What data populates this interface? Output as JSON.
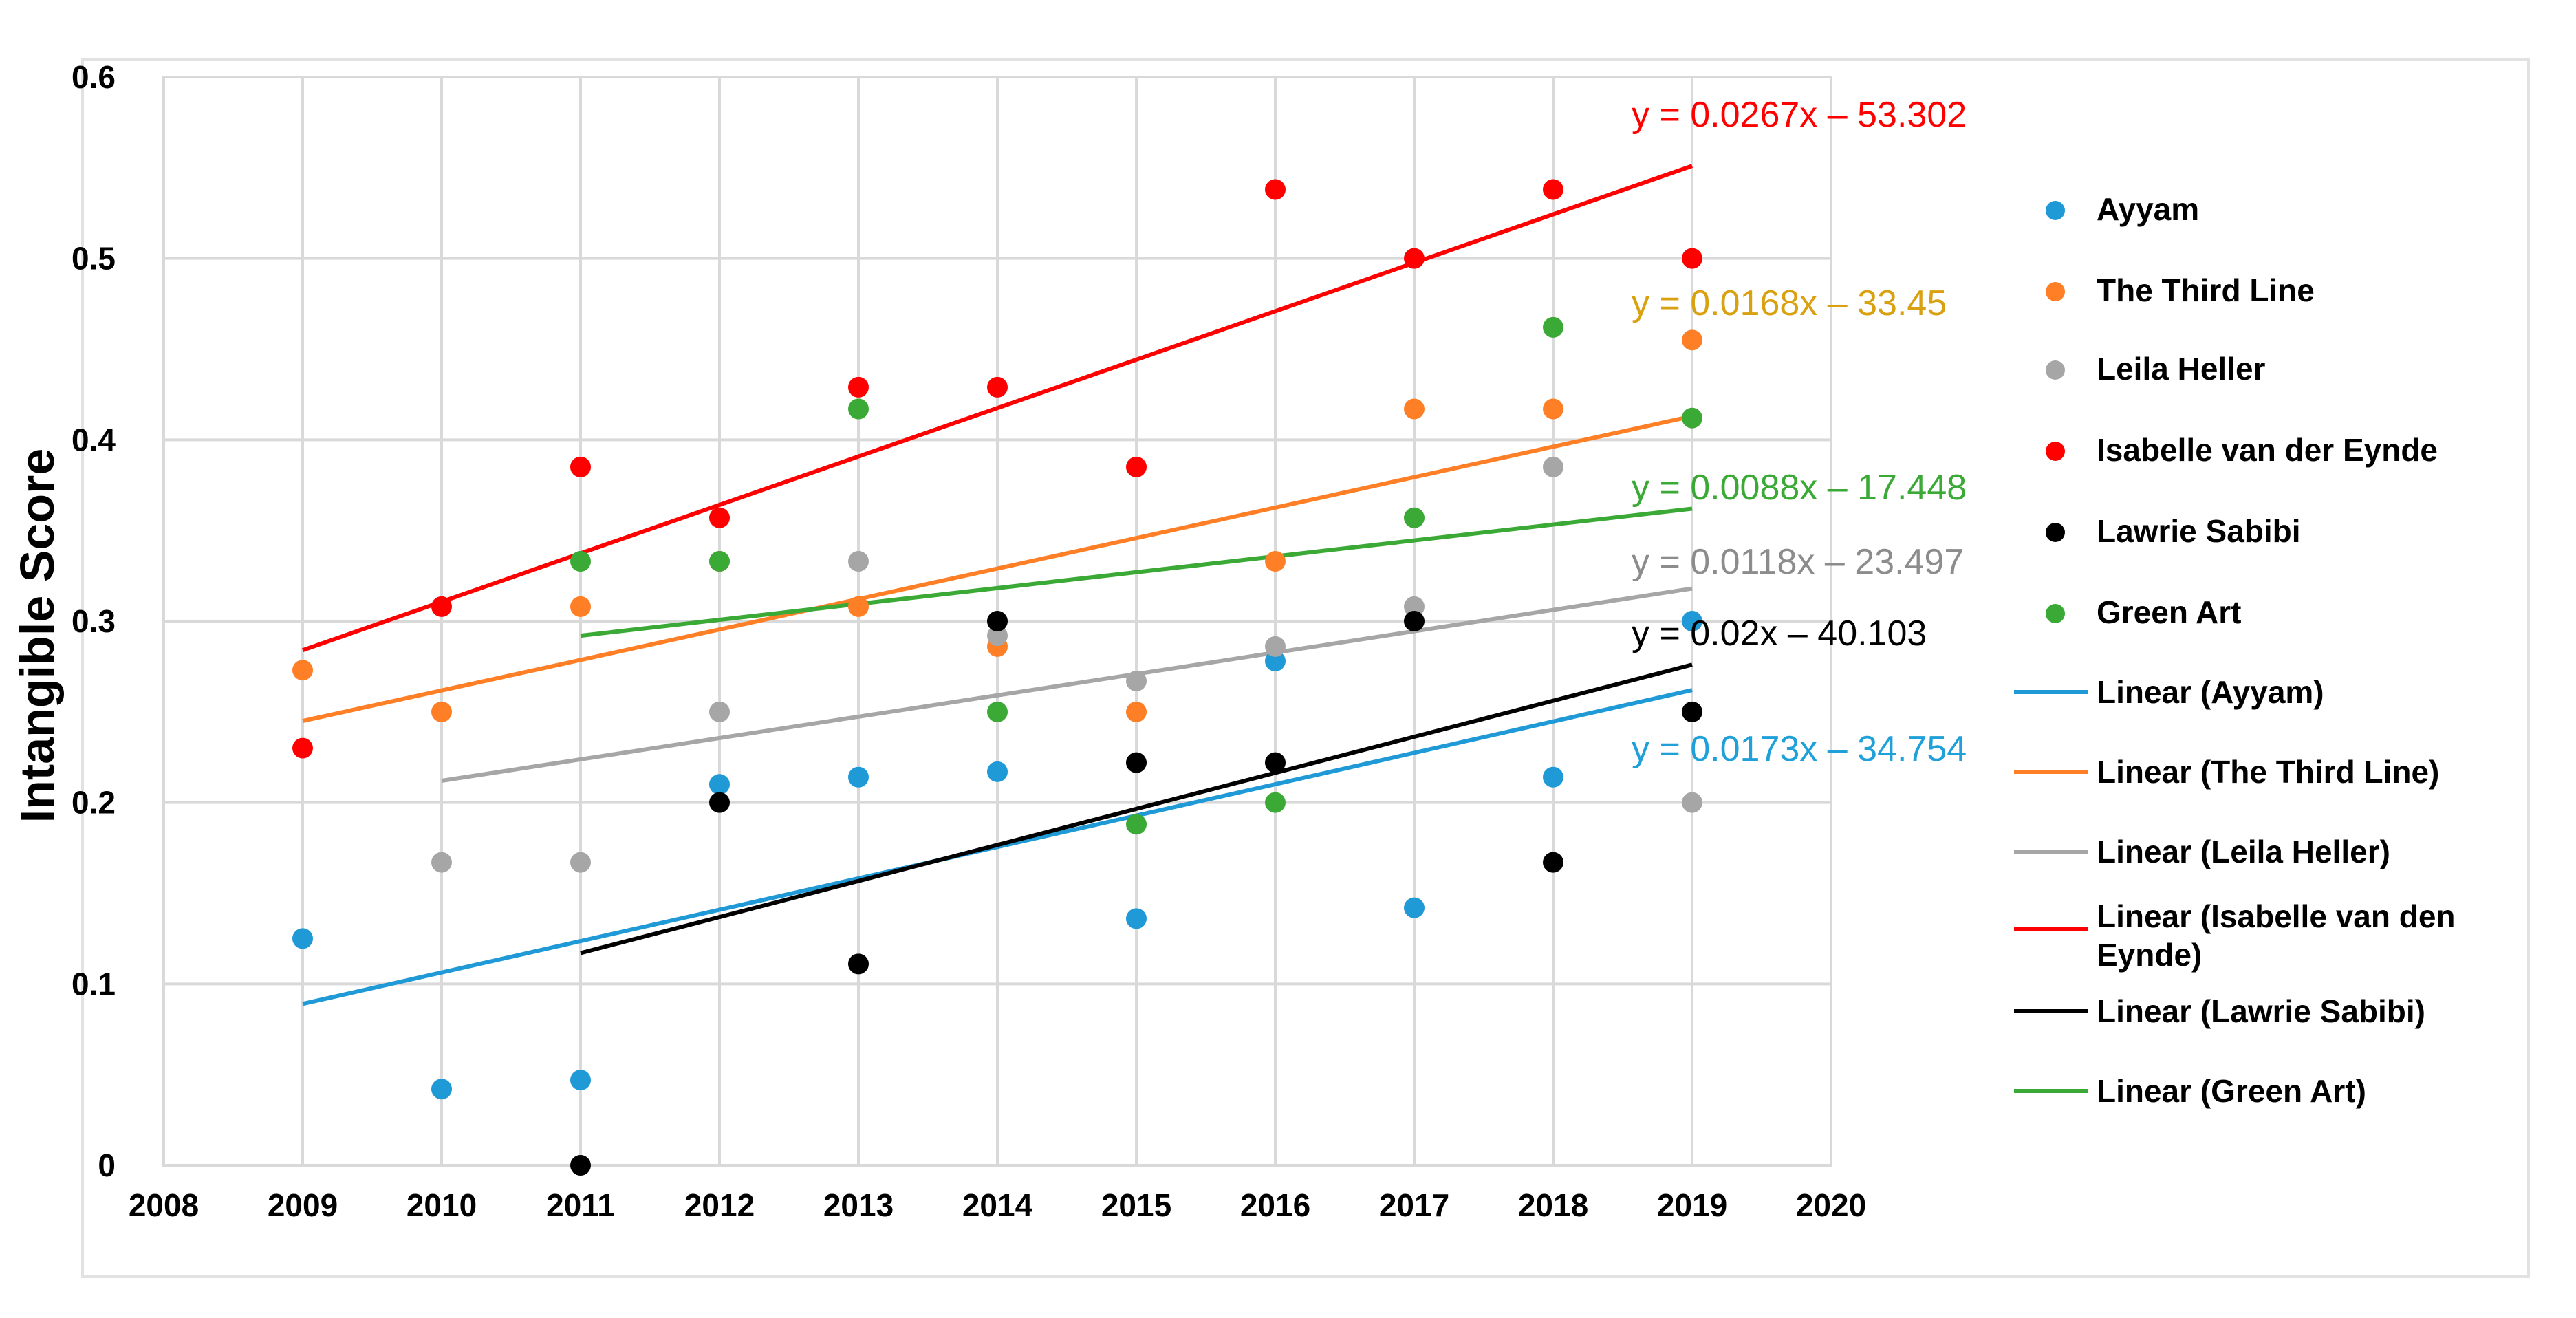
{
  "chart_data": {
    "type": "scatter",
    "ylabel": "Intangible Score",
    "xlabel": "",
    "xlim": [
      2008,
      2020
    ],
    "ylim": [
      0,
      0.6
    ],
    "xticks": [
      "2008",
      "2009",
      "2010",
      "2011",
      "2012",
      "2013",
      "2014",
      "2015",
      "2016",
      "2017",
      "2018",
      "2019",
      "2020"
    ],
    "yticks": [
      "0",
      "0.1",
      "0.2",
      "0.3",
      "0.4",
      "0.5",
      "0.6"
    ],
    "grid": true,
    "legend_position": "right",
    "series": [
      {
        "name": "Ayyam",
        "color": "#1f9ad6",
        "points": [
          [
            2009,
            0.125
          ],
          [
            2010,
            0.042
          ],
          [
            2011,
            0.047
          ],
          [
            2012,
            0.21
          ],
          [
            2013,
            0.214
          ],
          [
            2014,
            0.217
          ],
          [
            2015,
            0.136
          ],
          [
            2016,
            0.278
          ],
          [
            2017,
            0.142
          ],
          [
            2018,
            0.214
          ],
          [
            2019,
            0.3
          ]
        ],
        "trend": {
          "label": "Linear (Ayyam)",
          "equation": "y = 0.0173x – 34.754",
          "x": [
            2009,
            2019
          ],
          "y": [
            0.089,
            0.262
          ]
        }
      },
      {
        "name": "The Third Line",
        "color": "#ff7f27",
        "points": [
          [
            2009,
            0.273
          ],
          [
            2010,
            0.25
          ],
          [
            2011,
            0.308
          ],
          [
            2012,
            0.333
          ],
          [
            2013,
            0.308
          ],
          [
            2014,
            0.286
          ],
          [
            2015,
            0.25
          ],
          [
            2016,
            0.333
          ],
          [
            2017,
            0.417
          ],
          [
            2018,
            0.417
          ],
          [
            2019,
            0.455
          ]
        ],
        "trend": {
          "label": "Linear (The Third Line)",
          "equation": "y = 0.0168x – 33.45",
          "x": [
            2009,
            2019
          ],
          "y": [
            0.245,
            0.413
          ]
        }
      },
      {
        "name": "Leila Heller",
        "color": "#a6a6a6",
        "points": [
          [
            2010,
            0.167
          ],
          [
            2011,
            0.167
          ],
          [
            2012,
            0.25
          ],
          [
            2013,
            0.333
          ],
          [
            2014,
            0.292
          ],
          [
            2015,
            0.267
          ],
          [
            2016,
            0.286
          ],
          [
            2017,
            0.308
          ],
          [
            2018,
            0.385
          ],
          [
            2019,
            0.2
          ]
        ],
        "trend": {
          "label": "Linear (Leila Heller)",
          "equation": "y = 0.0118x – 23.497",
          "x": [
            2010,
            2019
          ],
          "y": [
            0.212,
            0.318
          ]
        }
      },
      {
        "name": "Isabelle van der Eynde",
        "color": "#ff0000",
        "points": [
          [
            2009,
            0.23
          ],
          [
            2010,
            0.308
          ],
          [
            2011,
            0.385
          ],
          [
            2012,
            0.357
          ],
          [
            2013,
            0.429
          ],
          [
            2014,
            0.429
          ],
          [
            2015,
            0.385
          ],
          [
            2016,
            0.538
          ],
          [
            2017,
            0.5
          ],
          [
            2018,
            0.538
          ],
          [
            2019,
            0.5
          ]
        ],
        "trend": {
          "label": "Linear (Isabelle van den Eynde)",
          "equation": "y = 0.0267x – 53.302",
          "x": [
            2009,
            2019
          ],
          "y": [
            0.284,
            0.551
          ]
        }
      },
      {
        "name": "Lawrie Sabibi",
        "color": "#000000",
        "points": [
          [
            2011,
            0.0
          ],
          [
            2012,
            0.2
          ],
          [
            2013,
            0.111
          ],
          [
            2014,
            0.3
          ],
          [
            2015,
            0.222
          ],
          [
            2016,
            0.222
          ],
          [
            2017,
            0.3
          ],
          [
            2018,
            0.167
          ],
          [
            2019,
            0.25
          ]
        ],
        "trend": {
          "label": "Linear (Lawrie Sabibi)",
          "equation": "y = 0.02x – 40.103",
          "x": [
            2011,
            2019
          ],
          "y": [
            0.117,
            0.276
          ]
        }
      },
      {
        "name": "Green Art",
        "color": "#3aa935",
        "points": [
          [
            2011,
            0.333
          ],
          [
            2012,
            0.333
          ],
          [
            2013,
            0.417
          ],
          [
            2014,
            0.25
          ],
          [
            2015,
            0.188
          ],
          [
            2016,
            0.2
          ],
          [
            2017,
            0.357
          ],
          [
            2018,
            0.462
          ],
          [
            2019,
            0.412
          ]
        ],
        "trend": {
          "label": "Linear (Green Art)",
          "equation": "y = 0.0088x – 17.448",
          "x": [
            2011,
            2019
          ],
          "y": [
            0.292,
            0.362
          ]
        }
      }
    ],
    "equation_colors": [
      "#1fa0d8",
      "#d9a010",
      "#8c8c8c",
      "#ff0000",
      "#000000",
      "#3aa935"
    ],
    "legend_order": [
      "Ayyam",
      "The Third Line",
      "Leila Heller",
      "Isabelle van der Eynde",
      "Lawrie Sabibi",
      "Green Art",
      "Linear (Ayyam)",
      "Linear (The Third Line)",
      "Linear (Leila Heller)",
      "Linear (Isabelle van den Eynde)",
      "Linear (Lawrie Sabibi)",
      "Linear (Green Art)"
    ]
  }
}
